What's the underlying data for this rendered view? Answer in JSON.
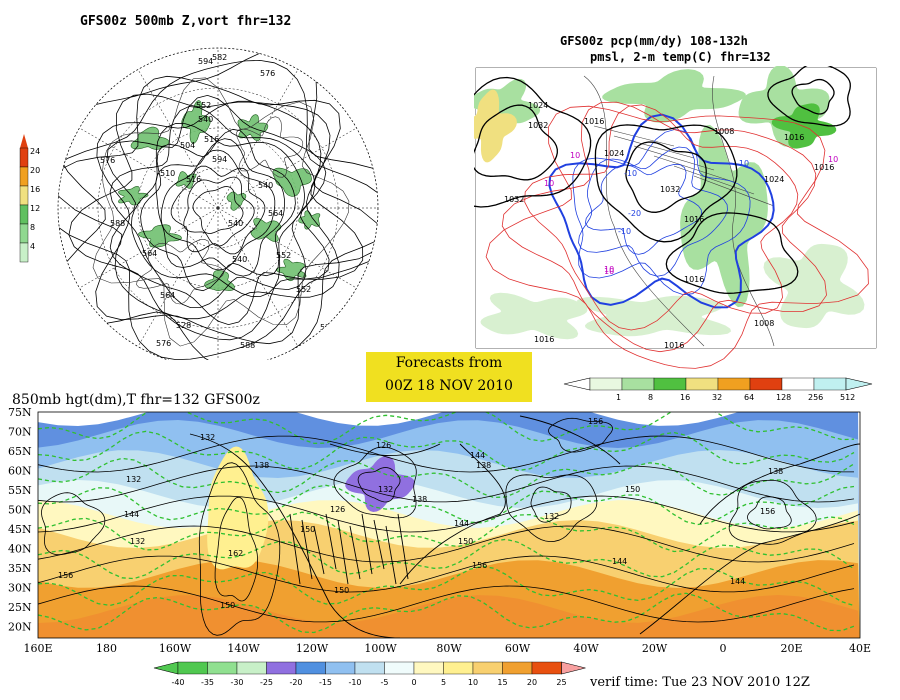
{
  "panel_a": {
    "title": "GFS00z   500mb  Z,vort    fhr=132",
    "scale_labels": [
      "24",
      "20",
      "16",
      "12",
      "8",
      "4"
    ],
    "scale_colors": [
      "#e04010",
      "#f0a020",
      "#f0e080",
      "#60c060",
      "#90d890",
      "#c8f0c8"
    ],
    "contour_labels": [
      "576",
      "594",
      "552",
      "540",
      "516",
      "504",
      "594",
      "510",
      "516",
      "540",
      "576",
      "564",
      "540",
      "588",
      "564",
      "552",
      "576",
      "528",
      "540",
      "552",
      "564",
      "576",
      "588",
      "582",
      "576"
    ]
  },
  "panel_b": {
    "title_line1": "GFS00z pcp(mm/dy) 108-132h",
    "title_line2": "pmsl, 2-m temp(C)  fhr=132",
    "isobar_labels": [
      "1024",
      "1032",
      "1032",
      "1016",
      "1024",
      "1032",
      "1016",
      "1008",
      "1024",
      "1016",
      "1016",
      "1016",
      "1008",
      "1016",
      "1016"
    ],
    "temp_labels": [
      "10",
      "10",
      "-10",
      "-20",
      "-10",
      "10",
      "10",
      "-10",
      "10"
    ],
    "scale_labels": [
      "1",
      "8",
      "16",
      "32",
      "64",
      "128",
      "256",
      "512"
    ],
    "scale_colors": [
      "#e8f8e0",
      "#a8e0a0",
      "#50c040",
      "#f0e080",
      "#f0a020",
      "#e04010",
      "#ffffff",
      "#c0f0f0"
    ]
  },
  "banner": {
    "line1": "Forecasts from",
    "line2": "00Z 18 NOV 2010"
  },
  "panel_c": {
    "title": "850mb hgt(dm),T   fhr=132 GFS00z",
    "lat_labels": [
      "75N",
      "70N",
      "65N",
      "60N",
      "55N",
      "50N",
      "45N",
      "40N",
      "35N",
      "30N",
      "25N",
      "20N"
    ],
    "lon_labels": [
      "160E",
      "180",
      "160W",
      "140W",
      "120W",
      "100W",
      "80W",
      "60W",
      "40W",
      "20W",
      "0",
      "20E",
      "40E"
    ],
    "height_labels": [
      "132",
      "138",
      "126",
      "132",
      "138",
      "156",
      "144",
      "138",
      "150",
      "144",
      "132",
      "156",
      "162",
      "150",
      "150",
      "144",
      "156",
      "150",
      "132",
      "138",
      "144",
      "156",
      "144",
      "150",
      "126",
      "132"
    ],
    "scale_labels": [
      "-40",
      "-35",
      "-30",
      "-25",
      "-20",
      "-15",
      "-10",
      "-5",
      "0",
      "5",
      "10",
      "15",
      "20",
      "25"
    ],
    "scale_colors": [
      "#50c850",
      "#90e090",
      "#c8f0c8",
      "#9070e0",
      "#5090e0",
      "#90c0f0",
      "#c0e0f0",
      "#f0fcfc",
      "#fff8c0",
      "#fff090",
      "#f8d070",
      "#f0a030",
      "#e85010"
    ]
  },
  "verif": "verif time: Tue 23 NOV 2010 12Z"
}
